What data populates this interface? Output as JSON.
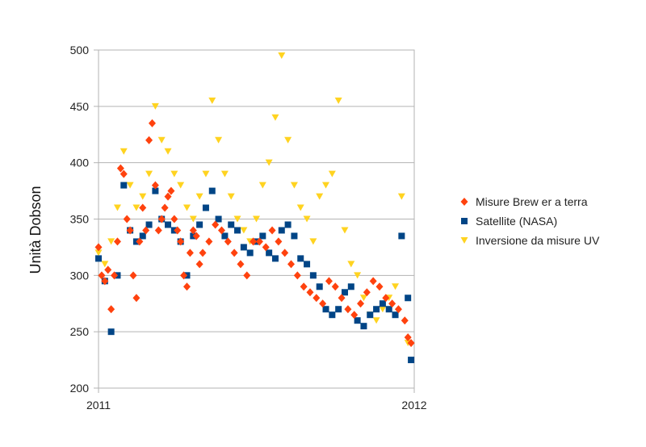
{
  "chart_data": {
    "type": "scatter",
    "title": "",
    "xlabel": "",
    "ylabel": "Unità Dobson",
    "xlim": [
      2011.0,
      2012.0
    ],
    "ylim": [
      200,
      500
    ],
    "x_ticks": [
      "2011",
      "2012"
    ],
    "y_ticks": [
      200,
      250,
      300,
      350,
      400,
      450,
      500
    ],
    "grid": "horizontal",
    "legend_position": "right",
    "series": [
      {
        "name": "Misure Brew er a terra",
        "color": "#FF420E",
        "marker": "diamond",
        "x": [
          2011.0,
          2011.01,
          2011.02,
          2011.03,
          2011.04,
          2011.05,
          2011.06,
          2011.07,
          2011.08,
          2011.09,
          2011.1,
          2011.11,
          2011.12,
          2011.13,
          2011.14,
          2011.15,
          2011.16,
          2011.17,
          2011.18,
          2011.19,
          2011.2,
          2011.21,
          2011.22,
          2011.23,
          2011.24,
          2011.25,
          2011.26,
          2011.27,
          2011.28,
          2011.29,
          2011.3,
          2011.31,
          2011.32,
          2011.33,
          2011.35,
          2011.37,
          2011.39,
          2011.41,
          2011.43,
          2011.45,
          2011.47,
          2011.49,
          2011.51,
          2011.53,
          2011.55,
          2011.57,
          2011.59,
          2011.61,
          2011.63,
          2011.65,
          2011.67,
          2011.69,
          2011.71,
          2011.73,
          2011.75,
          2011.77,
          2011.79,
          2011.81,
          2011.83,
          2011.85,
          2011.87,
          2011.89,
          2011.91,
          2011.93,
          2011.95,
          2011.97,
          2011.98,
          2011.99
        ],
        "y": [
          325,
          300,
          295,
          305,
          270,
          300,
          330,
          395,
          390,
          350,
          340,
          300,
          280,
          330,
          360,
          340,
          420,
          435,
          380,
          340,
          350,
          360,
          370,
          375,
          350,
          340,
          330,
          300,
          290,
          320,
          340,
          335,
          310,
          320,
          330,
          345,
          340,
          330,
          320,
          310,
          300,
          330,
          330,
          325,
          340,
          330,
          320,
          310,
          300,
          290,
          285,
          280,
          275,
          295,
          290,
          280,
          270,
          265,
          275,
          285,
          295,
          290,
          280,
          275,
          270,
          260,
          245,
          240
        ]
      },
      {
        "name": "Satellite (NASA)",
        "color": "#004586",
        "marker": "square",
        "x": [
          2011.0,
          2011.02,
          2011.04,
          2011.06,
          2011.08,
          2011.1,
          2011.12,
          2011.14,
          2011.16,
          2011.18,
          2011.2,
          2011.22,
          2011.24,
          2011.26,
          2011.28,
          2011.3,
          2011.32,
          2011.34,
          2011.36,
          2011.38,
          2011.4,
          2011.42,
          2011.44,
          2011.46,
          2011.48,
          2011.5,
          2011.52,
          2011.54,
          2011.56,
          2011.58,
          2011.6,
          2011.62,
          2011.64,
          2011.66,
          2011.68,
          2011.7,
          2011.72,
          2011.74,
          2011.76,
          2011.78,
          2011.8,
          2011.82,
          2011.84,
          2011.86,
          2011.88,
          2011.9,
          2011.92,
          2011.94,
          2011.96,
          2011.98,
          2011.99
        ],
        "y": [
          315,
          295,
          250,
          300,
          380,
          340,
          330,
          335,
          345,
          375,
          350,
          345,
          340,
          330,
          300,
          335,
          345,
          360,
          375,
          350,
          335,
          345,
          340,
          325,
          320,
          330,
          335,
          320,
          315,
          340,
          345,
          335,
          315,
          310,
          300,
          290,
          270,
          265,
          270,
          285,
          290,
          260,
          255,
          265,
          270,
          275,
          270,
          265,
          335,
          280,
          225
        ]
      },
      {
        "name": "Inversione da misure UV",
        "color": "#FFD320",
        "marker": "triangle-down",
        "x": [
          2011.0,
          2011.02,
          2011.04,
          2011.06,
          2011.08,
          2011.1,
          2011.12,
          2011.14,
          2011.16,
          2011.18,
          2011.2,
          2011.22,
          2011.24,
          2011.26,
          2011.28,
          2011.3,
          2011.32,
          2011.34,
          2011.36,
          2011.38,
          2011.4,
          2011.42,
          2011.44,
          2011.46,
          2011.48,
          2011.5,
          2011.52,
          2011.54,
          2011.56,
          2011.58,
          2011.6,
          2011.62,
          2011.64,
          2011.66,
          2011.68,
          2011.7,
          2011.72,
          2011.74,
          2011.76,
          2011.78,
          2011.8,
          2011.82,
          2011.84,
          2011.86,
          2011.88,
          2011.9,
          2011.92,
          2011.94,
          2011.96,
          2011.98
        ],
        "y": [
          320,
          310,
          330,
          360,
          410,
          380,
          360,
          370,
          390,
          450,
          420,
          410,
          390,
          380,
          360,
          350,
          370,
          390,
          455,
          420,
          390,
          370,
          350,
          340,
          330,
          350,
          380,
          400,
          440,
          495,
          420,
          380,
          360,
          350,
          330,
          370,
          380,
          390,
          455,
          340,
          310,
          300,
          280,
          265,
          260,
          270,
          280,
          290,
          370,
          240
        ]
      }
    ]
  }
}
